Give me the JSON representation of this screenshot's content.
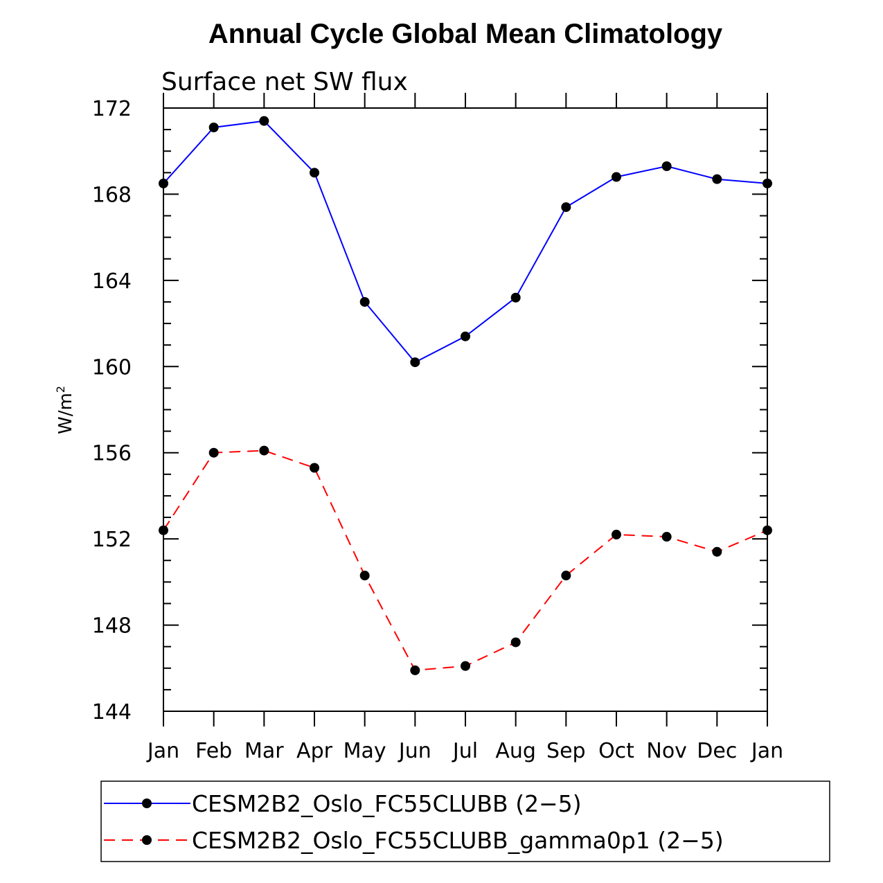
{
  "chart_data": {
    "type": "line",
    "title": "Annual Cycle Global Mean Climatology",
    "subtitle": "Surface net SW flux",
    "xlabel": "",
    "ylabel": "W/m",
    "ylabel_superscript": "2",
    "categories": [
      "Jan",
      "Feb",
      "Mar",
      "Apr",
      "May",
      "Jun",
      "Jul",
      "Aug",
      "Sep",
      "Oct",
      "Nov",
      "Dec",
      "Jan"
    ],
    "ylim": [
      144,
      172
    ],
    "yticks": [
      144,
      148,
      152,
      156,
      160,
      164,
      168,
      172
    ],
    "ytick_labels": [
      "144",
      "148",
      "152",
      "156",
      "160",
      "164",
      "168",
      "172"
    ],
    "grid": false,
    "legend_position": "bottom",
    "series": [
      {
        "name": "CESM2B2_Oslo_FC55CLUBB (2-5)",
        "legend_label": "CESM2B2_Oslo_FC55CLUBB (2−5)",
        "color": "#0000ff",
        "dash": "solid",
        "marker": "filled-circle",
        "values": [
          168.5,
          171.1,
          171.4,
          169.0,
          163.0,
          160.2,
          161.4,
          163.2,
          167.4,
          168.8,
          169.3,
          168.7,
          168.5
        ]
      },
      {
        "name": "CESM2B2_Oslo_FC55CLUBB_gamma0p1 (2-5)",
        "legend_label": "CESM2B2_Oslo_FC55CLUBB_gamma0p1 (2−5)",
        "color": "#ff0000",
        "dash": "dashed",
        "marker": "filled-circle",
        "values": [
          152.4,
          156.0,
          156.1,
          155.3,
          150.3,
          145.9,
          146.1,
          147.2,
          150.3,
          152.2,
          152.1,
          151.4,
          152.4
        ]
      }
    ]
  }
}
